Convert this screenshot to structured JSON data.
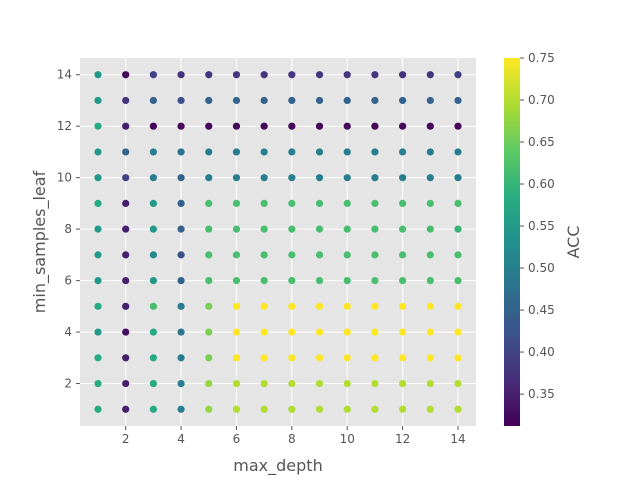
{
  "chart_data": {
    "type": "scatter",
    "title": "",
    "xlabel": "max_depth",
    "ylabel": "min_samples_leaf",
    "colorbar_label": "ACC",
    "xlim": [
      0.35,
      14.65
    ],
    "ylim": [
      0.35,
      14.65
    ],
    "x_ticks": [
      2,
      4,
      6,
      8,
      10,
      12,
      14
    ],
    "y_ticks": [
      2,
      4,
      6,
      8,
      10,
      12,
      14
    ],
    "colorbar_range": [
      0.312,
      0.75
    ],
    "colorbar_ticks": [
      0.35,
      0.4,
      0.45,
      0.5,
      0.55,
      0.6,
      0.65,
      0.7,
      0.75
    ],
    "colormap": "viridis",
    "grid": true,
    "plot_background": "#e5e5e5",
    "max_depth": [
      1,
      2,
      3,
      4,
      5,
      6,
      7,
      8,
      9,
      10,
      11,
      12,
      13,
      14
    ],
    "min_samples_leaf": [
      1,
      2,
      3,
      4,
      5,
      6,
      7,
      8,
      9,
      10,
      11,
      12,
      13,
      14
    ],
    "acc_by_min_samples_leaf": [
      [
        0.58,
        0.35,
        0.58,
        0.5,
        0.68,
        0.7,
        0.7,
        0.7,
        0.7,
        0.7,
        0.7,
        0.7,
        0.7,
        0.7
      ],
      [
        0.58,
        0.35,
        0.58,
        0.5,
        0.68,
        0.7,
        0.7,
        0.7,
        0.7,
        0.7,
        0.7,
        0.7,
        0.7,
        0.7
      ],
      [
        0.58,
        0.35,
        0.58,
        0.5,
        0.66,
        0.75,
        0.75,
        0.75,
        0.75,
        0.75,
        0.75,
        0.75,
        0.75,
        0.75
      ],
      [
        0.55,
        0.33,
        0.58,
        0.48,
        0.66,
        0.75,
        0.75,
        0.75,
        0.75,
        0.75,
        0.75,
        0.75,
        0.75,
        0.75
      ],
      [
        0.58,
        0.35,
        0.62,
        0.5,
        0.66,
        0.75,
        0.75,
        0.75,
        0.75,
        0.75,
        0.75,
        0.75,
        0.75,
        0.75
      ],
      [
        0.55,
        0.35,
        0.55,
        0.45,
        0.62,
        0.62,
        0.62,
        0.62,
        0.62,
        0.62,
        0.62,
        0.62,
        0.62,
        0.62
      ],
      [
        0.55,
        0.35,
        0.52,
        0.42,
        0.62,
        0.62,
        0.62,
        0.62,
        0.62,
        0.62,
        0.62,
        0.62,
        0.62,
        0.62
      ],
      [
        0.55,
        0.35,
        0.55,
        0.45,
        0.62,
        0.62,
        0.62,
        0.62,
        0.62,
        0.62,
        0.62,
        0.62,
        0.62,
        0.6
      ],
      [
        0.58,
        0.35,
        0.55,
        0.45,
        0.62,
        0.62,
        0.62,
        0.62,
        0.62,
        0.62,
        0.62,
        0.62,
        0.62,
        0.62
      ],
      [
        0.55,
        0.4,
        0.5,
        0.45,
        0.5,
        0.5,
        0.5,
        0.5,
        0.5,
        0.5,
        0.5,
        0.5,
        0.5,
        0.5
      ],
      [
        0.55,
        0.45,
        0.5,
        0.48,
        0.5,
        0.5,
        0.5,
        0.5,
        0.5,
        0.5,
        0.5,
        0.5,
        0.5,
        0.5
      ],
      [
        0.58,
        0.35,
        0.32,
        0.32,
        0.32,
        0.32,
        0.32,
        0.32,
        0.32,
        0.32,
        0.32,
        0.32,
        0.32,
        0.32
      ],
      [
        0.55,
        0.38,
        0.45,
        0.42,
        0.45,
        0.45,
        0.45,
        0.45,
        0.45,
        0.45,
        0.45,
        0.45,
        0.45,
        0.45
      ],
      [
        0.55,
        0.32,
        0.4,
        0.38,
        0.38,
        0.38,
        0.38,
        0.38,
        0.38,
        0.38,
        0.38,
        0.38,
        0.38,
        0.4
      ]
    ]
  }
}
